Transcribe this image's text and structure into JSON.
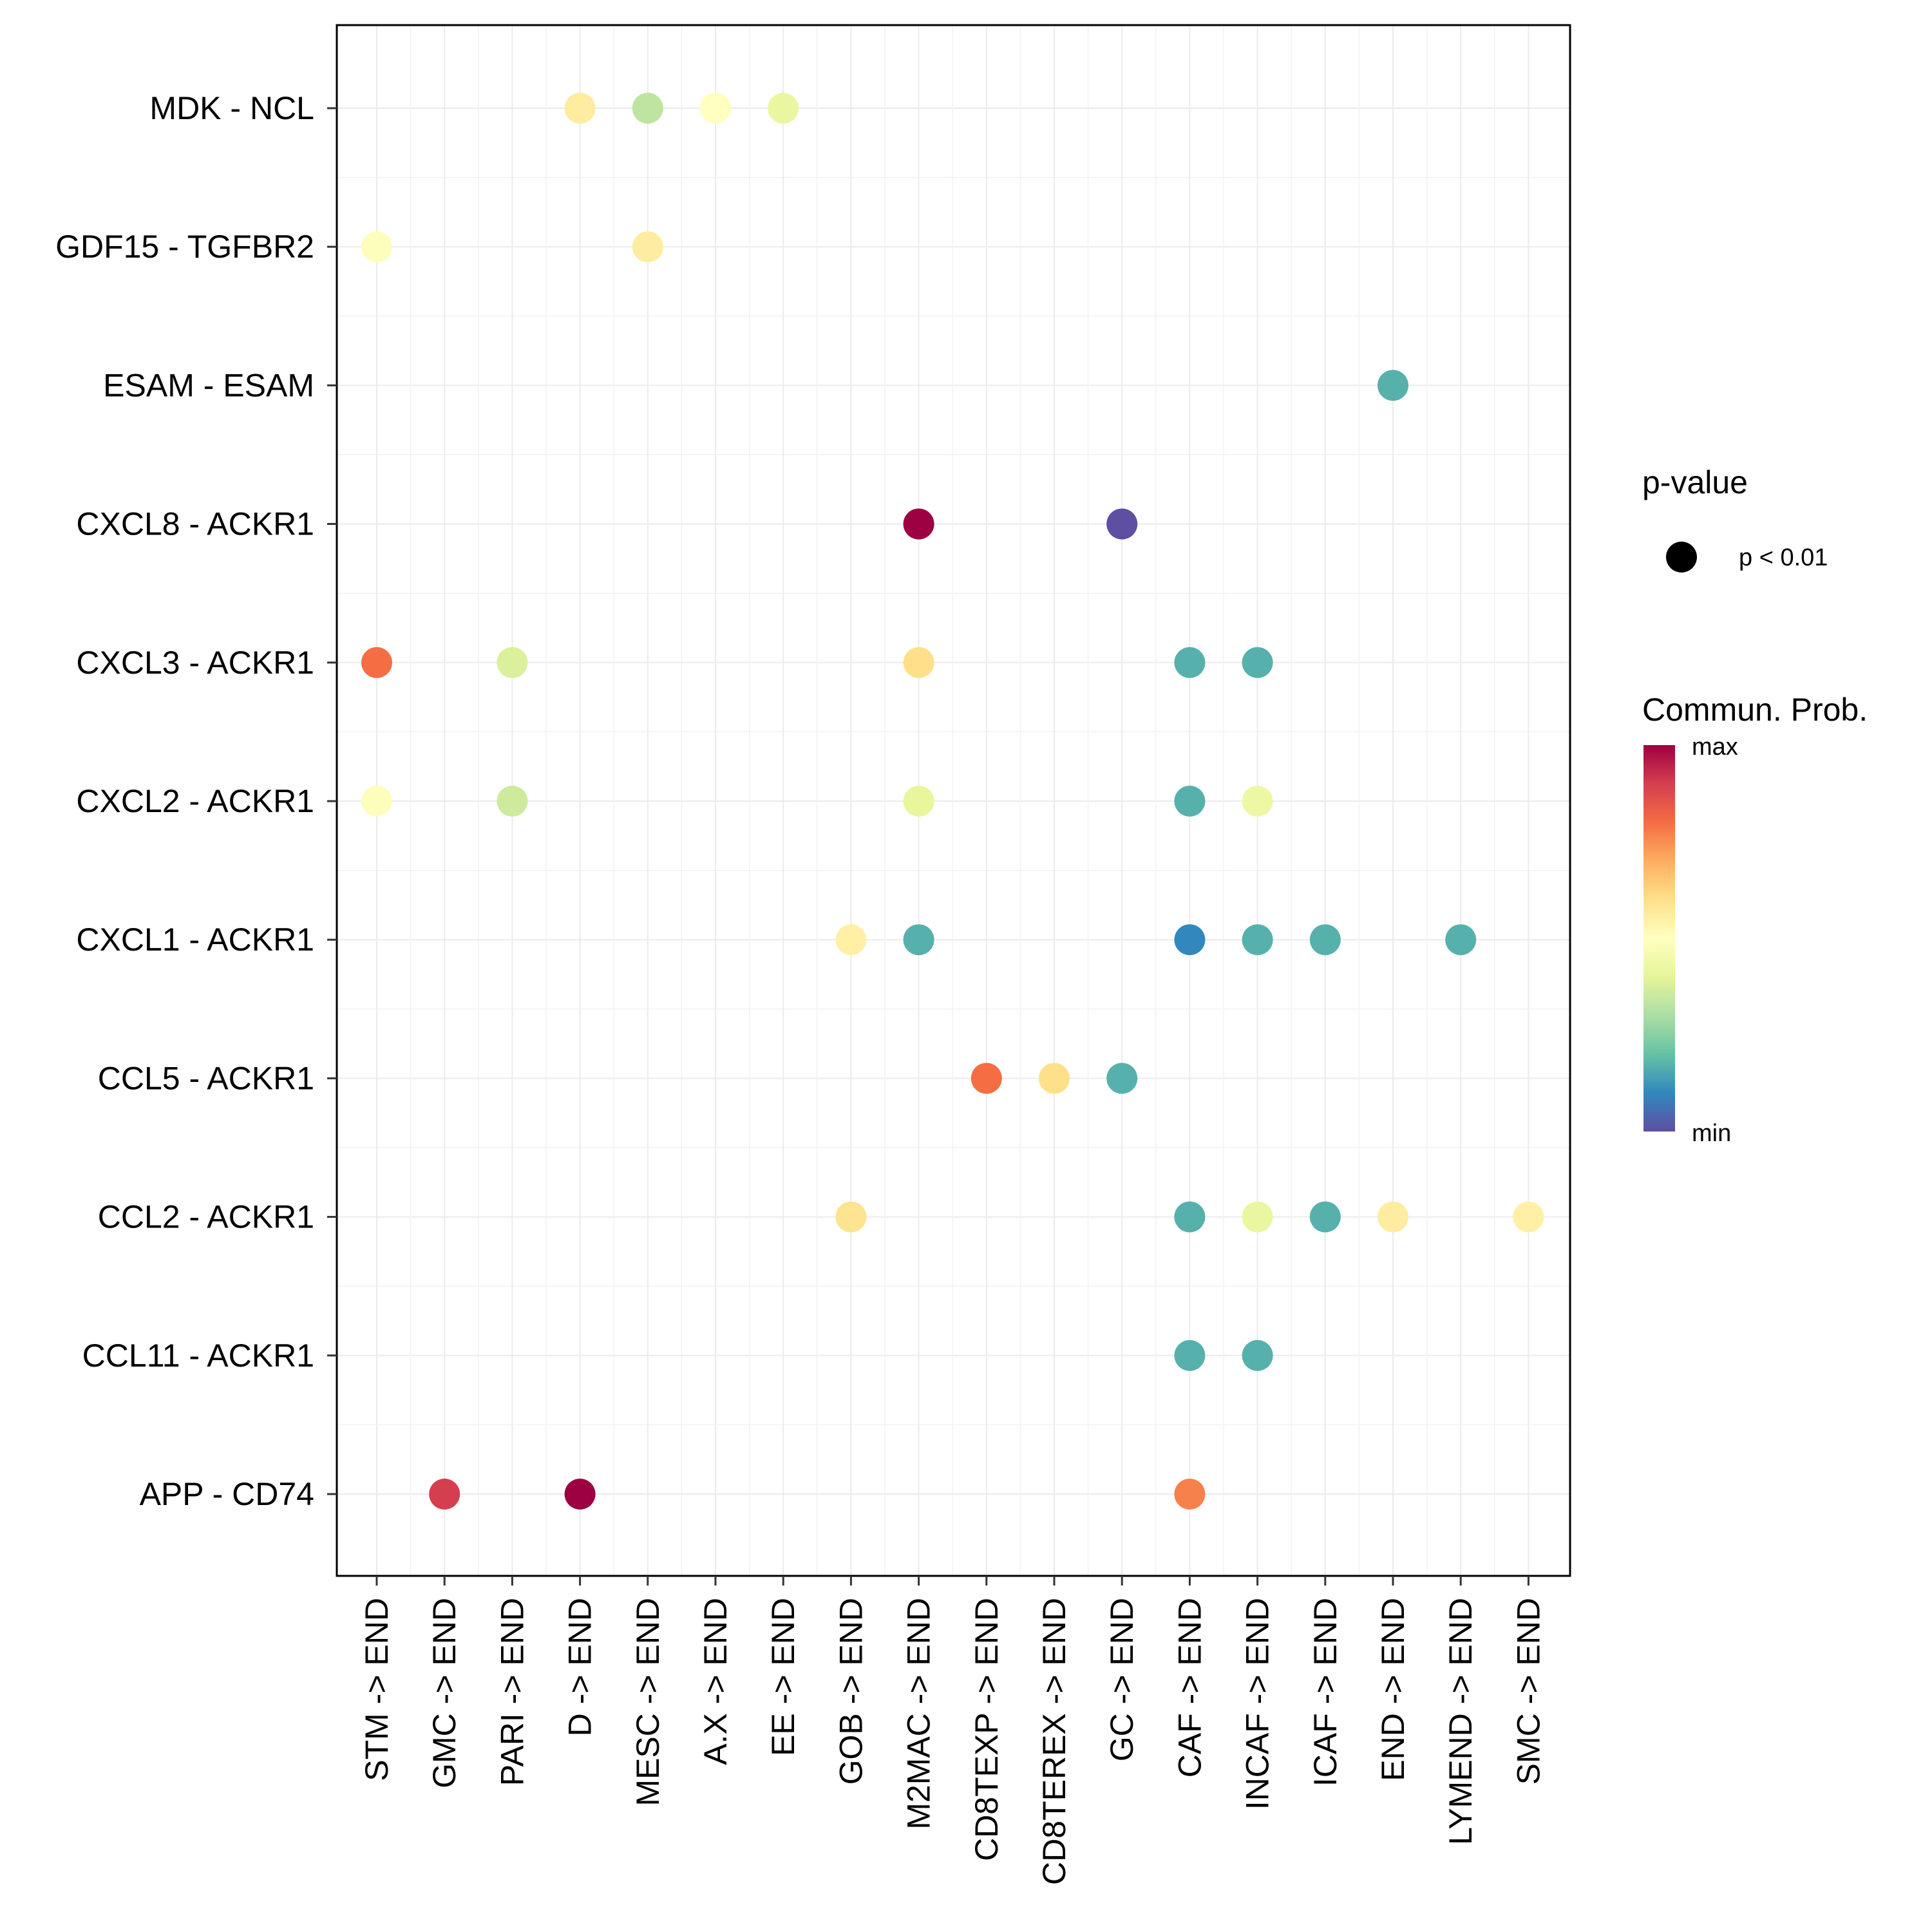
{
  "chart_data": {
    "type": "dot",
    "title": "",
    "xlabel": "",
    "ylabel": "",
    "grid": true,
    "x_categories": [
      "STM -> END",
      "GMC -> END",
      "PARI -> END",
      "D -> END",
      "MESC -> END",
      "A.X -> END",
      "EE -> END",
      "GOB -> END",
      "M2MAC -> END",
      "CD8TEXP -> END",
      "CD8TEREX -> END",
      "GC -> END",
      "CAF -> END",
      "INCAF -> END",
      "ICAF -> END",
      "END -> END",
      "LYMEND -> END",
      "SMC -> END"
    ],
    "y_categories": [
      "MDK - NCL",
      "GDF15 - TGFBR2",
      "ESAM - ESAM",
      "CXCL8 - ACKR1",
      "CXCL3 - ACKR1",
      "CXCL2 - ACKR1",
      "CXCL1 - ACKR1",
      "CCL5 - ACKR1",
      "CCL2 - ACKR1",
      "CCL11 - ACKR1",
      "APP - CD74"
    ],
    "value_scale": "relative 0 (min) to 1 (max)",
    "points": [
      {
        "x": "D -> END",
        "y": "MDK - NCL",
        "prob": 0.56
      },
      {
        "x": "MESC -> END",
        "y": "MDK - NCL",
        "prob": 0.33
      },
      {
        "x": "A.X -> END",
        "y": "MDK - NCL",
        "prob": 0.5
      },
      {
        "x": "EE -> END",
        "y": "MDK - NCL",
        "prob": 0.42
      },
      {
        "x": "STM -> END",
        "y": "GDF15 - TGFBR2",
        "prob": 0.49
      },
      {
        "x": "MESC -> END",
        "y": "GDF15 - TGFBR2",
        "prob": 0.56
      },
      {
        "x": "END -> END",
        "y": "ESAM - ESAM",
        "prob": 0.17
      },
      {
        "x": "M2MAC -> END",
        "y": "CXCL8 - ACKR1",
        "prob": 1.0
      },
      {
        "x": "GC -> END",
        "y": "CXCL8 - ACKR1",
        "prob": 0.0
      },
      {
        "x": "STM -> END",
        "y": "CXCL3 - ACKR1",
        "prob": 0.8
      },
      {
        "x": "PARI -> END",
        "y": "CXCL3 - ACKR1",
        "prob": 0.38
      },
      {
        "x": "M2MAC -> END",
        "y": "CXCL3 - ACKR1",
        "prob": 0.6
      },
      {
        "x": "CAF -> END",
        "y": "CXCL3 - ACKR1",
        "prob": 0.17
      },
      {
        "x": "INCAF -> END",
        "y": "CXCL3 - ACKR1",
        "prob": 0.17
      },
      {
        "x": "STM -> END",
        "y": "CXCL2 - ACKR1",
        "prob": 0.49
      },
      {
        "x": "PARI -> END",
        "y": "CXCL2 - ACKR1",
        "prob": 0.36
      },
      {
        "x": "M2MAC -> END",
        "y": "CXCL2 - ACKR1",
        "prob": 0.41
      },
      {
        "x": "CAF -> END",
        "y": "CXCL2 - ACKR1",
        "prob": 0.17
      },
      {
        "x": "INCAF -> END",
        "y": "CXCL2 - ACKR1",
        "prob": 0.43
      },
      {
        "x": "GOB -> END",
        "y": "CXCL1 - ACKR1",
        "prob": 0.55
      },
      {
        "x": "M2MAC -> END",
        "y": "CXCL1 - ACKR1",
        "prob": 0.17
      },
      {
        "x": "CAF -> END",
        "y": "CXCL1 - ACKR1",
        "prob": 0.1
      },
      {
        "x": "INCAF -> END",
        "y": "CXCL1 - ACKR1",
        "prob": 0.17
      },
      {
        "x": "ICAF -> END",
        "y": "CXCL1 - ACKR1",
        "prob": 0.17
      },
      {
        "x": "LYMEND -> END",
        "y": "CXCL1 - ACKR1",
        "prob": 0.17
      },
      {
        "x": "CD8TEXP -> END",
        "y": "CCL5 - ACKR1",
        "prob": 0.8
      },
      {
        "x": "CD8TEREX -> END",
        "y": "CCL5 - ACKR1",
        "prob": 0.6
      },
      {
        "x": "GC -> END",
        "y": "CCL5 - ACKR1",
        "prob": 0.17
      },
      {
        "x": "GOB -> END",
        "y": "CCL2 - ACKR1",
        "prob": 0.59
      },
      {
        "x": "CAF -> END",
        "y": "CCL2 - ACKR1",
        "prob": 0.17
      },
      {
        "x": "INCAF -> END",
        "y": "CCL2 - ACKR1",
        "prob": 0.42
      },
      {
        "x": "ICAF -> END",
        "y": "CCL2 - ACKR1",
        "prob": 0.17
      },
      {
        "x": "END -> END",
        "y": "CCL2 - ACKR1",
        "prob": 0.56
      },
      {
        "x": "SMC -> END",
        "y": "CCL2 - ACKR1",
        "prob": 0.55
      },
      {
        "x": "CAF -> END",
        "y": "CCL11 - ACKR1",
        "prob": 0.17
      },
      {
        "x": "INCAF -> END",
        "y": "CCL11 - ACKR1",
        "prob": 0.17
      },
      {
        "x": "GMC -> END",
        "y": "APP - CD74",
        "prob": 0.9
      },
      {
        "x": "D -> END",
        "y": "APP - CD74",
        "prob": 1.0
      },
      {
        "x": "CAF -> END",
        "y": "APP - CD74",
        "prob": 0.77
      }
    ],
    "legend": {
      "pvalue_title": "p-value",
      "pvalue_label": "p < 0.01",
      "prob_title": "Commun. Prob.",
      "prob_max_label": "max",
      "prob_min_label": "min",
      "colormap": [
        "#5E4FA2",
        "#3288BD",
        "#66C2A5",
        "#ABDDA4",
        "#E6F598",
        "#FFFFBF",
        "#FEE08B",
        "#FDAE61",
        "#F46D43",
        "#D53E4F",
        "#9E0142"
      ]
    }
  }
}
